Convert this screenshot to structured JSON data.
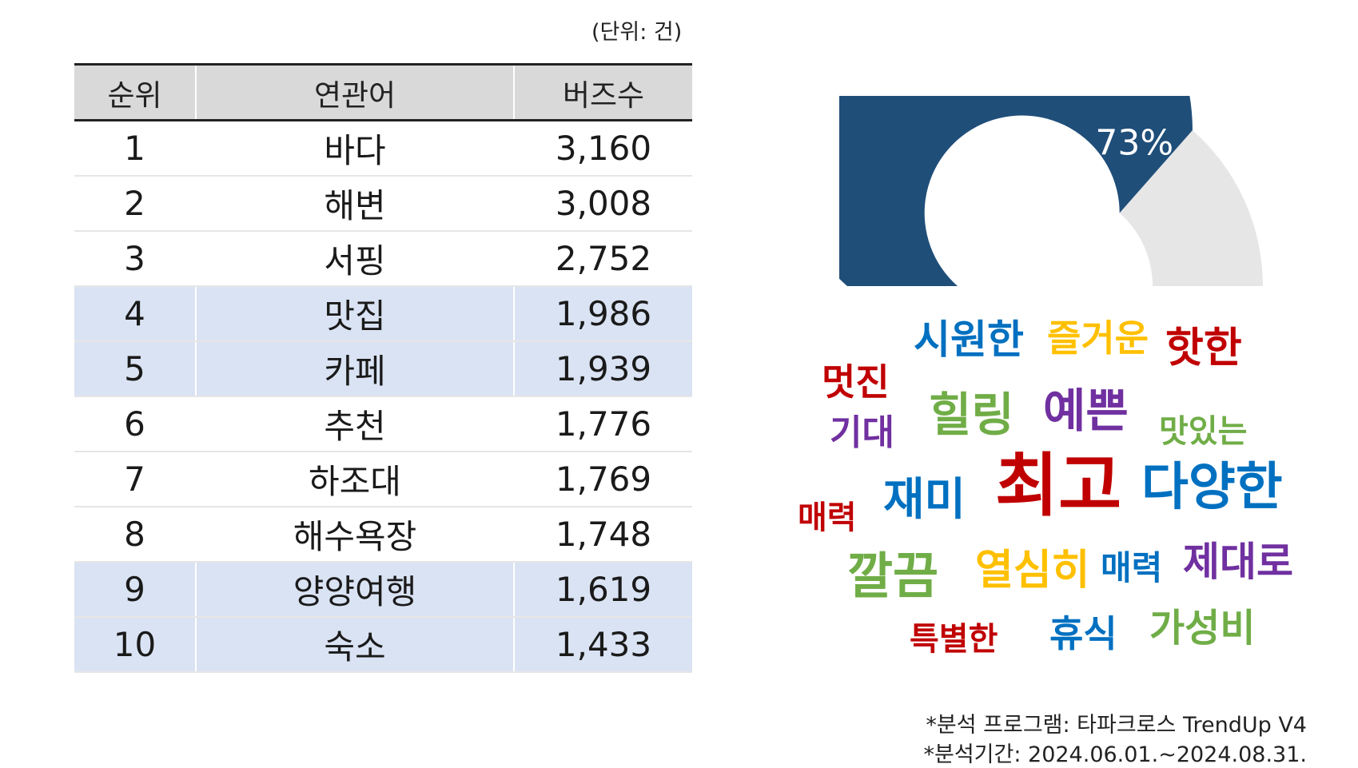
{
  "unit_note": "(단위: 건)",
  "table": {
    "headers": [
      "순위",
      "연관어",
      "버즈수"
    ],
    "rows": [
      {
        "rank": "1",
        "word": "바다",
        "count": "3,160",
        "highlight": false
      },
      {
        "rank": "2",
        "word": "해변",
        "count": "3,008",
        "highlight": false
      },
      {
        "rank": "3",
        "word": "서핑",
        "count": "2,752",
        "highlight": false
      },
      {
        "rank": "4",
        "word": "맛집",
        "count": "1,986",
        "highlight": true
      },
      {
        "rank": "5",
        "word": "카페",
        "count": "1,939",
        "highlight": true
      },
      {
        "rank": "6",
        "word": "추천",
        "count": "1,776",
        "highlight": false
      },
      {
        "rank": "7",
        "word": "하조대",
        "count": "1,769",
        "highlight": false
      },
      {
        "rank": "8",
        "word": "해수욕장",
        "count": "1,748",
        "highlight": false
      },
      {
        "rank": "9",
        "word": "양양여행",
        "count": "1,619",
        "highlight": true
      },
      {
        "rank": "10",
        "word": "숙소",
        "count": "1,433",
        "highlight": true
      }
    ]
  },
  "chart_data": {
    "type": "pie",
    "variant": "semicircle-gauge",
    "label": "73%",
    "values": [
      73,
      27
    ],
    "colors": [
      "#1f4e79",
      "#e7e6e6"
    ]
  },
  "word_cloud": {
    "words": [
      {
        "text": "멋진",
        "color": "#c00000"
      },
      {
        "text": "시원한",
        "color": "#0070c0"
      },
      {
        "text": "즐거운",
        "color": "#ffc000"
      },
      {
        "text": "핫한",
        "color": "#c00000"
      },
      {
        "text": "기대",
        "color": "#7030a0"
      },
      {
        "text": "힐링",
        "color": "#70ad47"
      },
      {
        "text": "예쁜",
        "color": "#7030a0"
      },
      {
        "text": "맛있는",
        "color": "#70ad47"
      },
      {
        "text": "매력",
        "color": "#c00000"
      },
      {
        "text": "재미",
        "color": "#0070c0"
      },
      {
        "text": "최고",
        "color": "#c00000"
      },
      {
        "text": "다양한",
        "color": "#0070c0"
      },
      {
        "text": "깔끔",
        "color": "#70ad47"
      },
      {
        "text": "열심히",
        "color": "#ffc000"
      },
      {
        "text": "매력",
        "color": "#0070c0"
      },
      {
        "text": "제대로",
        "color": "#7030a0"
      },
      {
        "text": "특별한",
        "color": "#c00000"
      },
      {
        "text": "휴식",
        "color": "#0070c0"
      },
      {
        "text": "가성비",
        "color": "#70ad47"
      }
    ]
  },
  "footnotes": [
    "*분석 프로그램: 타파크로스 TrendUp V4",
    "*분석기간: 2024.06.01.~2024.08.31."
  ]
}
